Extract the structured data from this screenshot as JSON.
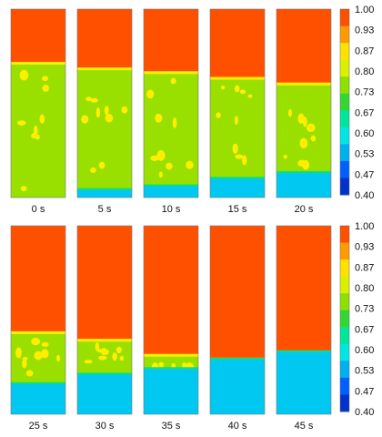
{
  "panels": [
    {
      "time": "0 s",
      "phases": {
        "liquid_top": 0.72,
        "bottom_fill": 0.0
      }
    },
    {
      "time": "5 s",
      "phases": {
        "liquid_top": 0.69,
        "bottom_fill": 0.04
      }
    },
    {
      "time": "10 s",
      "phases": {
        "liquid_top": 0.67,
        "bottom_fill": 0.06
      }
    },
    {
      "time": "15 s",
      "phases": {
        "liquid_top": 0.64,
        "bottom_fill": 0.1
      }
    },
    {
      "time": "20 s",
      "phases": {
        "liquid_top": 0.61,
        "bottom_fill": 0.13
      }
    },
    {
      "time": "25 s",
      "phases": {
        "liquid_top": 0.44,
        "bottom_fill": 0.16
      }
    },
    {
      "time": "30 s",
      "phases": {
        "liquid_top": 0.4,
        "bottom_fill": 0.21
      }
    },
    {
      "time": "35 s",
      "phases": {
        "liquid_top": 0.32,
        "bottom_fill": 0.24
      }
    },
    {
      "time": "40 s",
      "phases": {
        "liquid_top": 0.3,
        "bottom_fill": 0.29
      }
    },
    {
      "time": "45 s",
      "phases": {
        "liquid_top": 0.33,
        "bottom_fill": 0.33
      }
    }
  ],
  "colorbar": {
    "ticks": [
      "1.00",
      "0.93",
      "0.87",
      "0.80",
      "0.73",
      "0.67",
      "0.60",
      "0.53",
      "0.47",
      "0.40"
    ],
    "colors": [
      "#ff5000",
      "#ff9a00",
      "#ffe100",
      "#d9f000",
      "#8ee000",
      "#33d633",
      "#00e69a",
      "#00e6e6",
      "#00b0f0",
      "#0060ff",
      "#0033cc"
    ]
  },
  "palette": {
    "top_phase": "#ff5000",
    "mix_phase": "#99e000",
    "bubble": "#ffee00",
    "bottom_phase": "#00c8f0",
    "interface": "#00e08a"
  }
}
